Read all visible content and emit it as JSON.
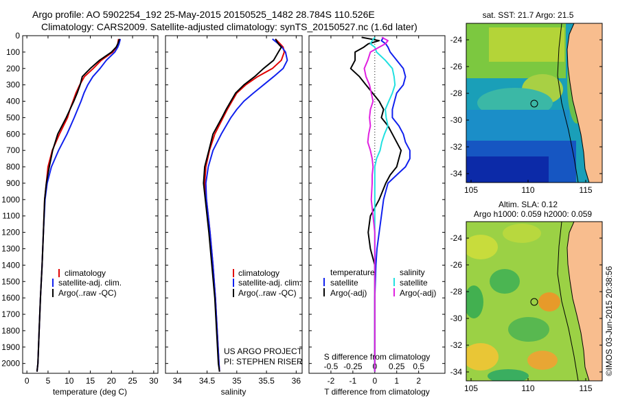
{
  "header": {
    "line1": "Argo profile: AO 5902254_192 25-May-2015 20150525_1482 28.784S 110.526E",
    "line2": "Climatology: CARS2009. Satellite-adjusted climatology: synTS_20150527.nc (1.6d later)"
  },
  "credits": {
    "project": "US ARGO PROJECT",
    "pi": "PI: STEPHEN RISER",
    "imos": "©IMOS 03-Jun-2015 20:38:56"
  },
  "colors": {
    "climatology": "#e00000",
    "satellite": "#1020ee",
    "argo": "#000000",
    "argo_salinity": "#e020e0",
    "satellite_salinity": "#20e0e0",
    "land": "#f8bd8e"
  },
  "depth_axis": {
    "ticks": [
      0,
      100,
      200,
      300,
      400,
      500,
      600,
      700,
      800,
      900,
      1000,
      1100,
      1200,
      1300,
      1400,
      1500,
      1600,
      1700,
      1800,
      1900,
      2000
    ],
    "ylim": [
      0,
      2060
    ]
  },
  "chart_data": [
    {
      "type": "line",
      "id": "temperature",
      "xlabel": "temperature (deg C)",
      "xlim": [
        -1,
        31
      ],
      "xticks": [
        0,
        5,
        10,
        15,
        20,
        25,
        30
      ],
      "ylim": [
        0,
        2060
      ],
      "depths": [
        20,
        50,
        70,
        100,
        150,
        200,
        250,
        300,
        350,
        400,
        450,
        500,
        600,
        700,
        800,
        900,
        1000,
        1200,
        1400,
        1600,
        1800,
        2000,
        2050
      ],
      "series": [
        {
          "name": "climatology",
          "color_key": "climatology",
          "values": [
            21.7,
            21.5,
            21.2,
            20.3,
            17.6,
            15.7,
            13.6,
            12.5,
            11.6,
            10.9,
            10.2,
            9.6,
            7.7,
            6.0,
            5.0,
            4.6,
            4.2,
            3.9,
            3.6,
            3.2,
            2.9,
            2.6,
            2.4
          ]
        },
        {
          "name": "satellite-adj. clim.",
          "color_key": "satellite",
          "values": [
            22.1,
            21.8,
            21.5,
            20.8,
            18.8,
            17.3,
            15.6,
            14.4,
            13.5,
            12.8,
            12.0,
            11.2,
            9.5,
            7.5,
            5.8,
            4.8,
            4.3,
            3.9,
            3.6,
            3.2,
            2.9,
            2.6,
            2.4
          ]
        },
        {
          "name": "Argo(..raw -QC)",
          "color_key": "argo",
          "values": [
            21.9,
            21.5,
            21.1,
            20.0,
            17.2,
            15.0,
            13.1,
            12.6,
            11.9,
            11.1,
            10.2,
            9.3,
            7.3,
            6.1,
            5.3,
            4.6,
            4.2,
            3.9,
            3.6,
            3.2,
            2.9,
            2.6,
            2.4
          ]
        }
      ],
      "legend": [
        "climatology",
        "satellite-adj. clim.",
        "Argo(..raw -QC)"
      ]
    },
    {
      "type": "line",
      "id": "salinity",
      "xlabel": "salinity",
      "xlim": [
        33.8,
        36.1
      ],
      "xticks": [
        34,
        34.5,
        35,
        35.5,
        36
      ],
      "ylim": [
        0,
        2060
      ],
      "depths": [
        20,
        50,
        70,
        100,
        150,
        200,
        250,
        300,
        350,
        400,
        450,
        500,
        600,
        700,
        800,
        900,
        1000,
        1200,
        1400,
        1600,
        1800,
        2000,
        2050
      ],
      "series": [
        {
          "name": "climatology",
          "color_key": "climatology",
          "values": [
            35.65,
            35.73,
            35.78,
            35.8,
            35.75,
            35.6,
            35.35,
            35.15,
            35.0,
            34.92,
            34.84,
            34.77,
            34.63,
            34.54,
            34.48,
            34.46,
            34.49,
            34.55,
            34.6,
            34.64,
            34.67,
            34.7,
            34.71
          ]
        },
        {
          "name": "satellite-adj. clim.",
          "color_key": "satellite",
          "values": [
            35.6,
            35.7,
            35.76,
            35.82,
            35.85,
            35.78,
            35.62,
            35.45,
            35.28,
            35.12,
            35.0,
            34.9,
            34.74,
            34.6,
            34.52,
            34.48,
            34.49,
            34.55,
            34.6,
            34.64,
            34.67,
            34.7,
            34.71
          ]
        },
        {
          "name": "Argo(..raw -QC)",
          "color_key": "argo",
          "values": [
            35.65,
            35.7,
            35.75,
            35.7,
            35.62,
            35.45,
            35.3,
            35.12,
            34.98,
            34.9,
            34.82,
            34.75,
            34.6,
            34.53,
            34.46,
            34.44,
            34.47,
            34.53,
            34.58,
            34.63,
            34.66,
            34.69,
            34.71
          ]
        }
      ],
      "legend": [
        "climatology",
        "satellite-adj. clim.",
        "Argo(..raw -QC)"
      ]
    },
    {
      "type": "line",
      "id": "differences",
      "xlabel": "T difference from climatology",
      "xlabel_top": "S difference from climatology",
      "xlim": [
        -3,
        3.2
      ],
      "xticks": [
        -2,
        -1,
        0,
        1,
        2
      ],
      "xticks_s": [
        -0.5,
        -0.25,
        0,
        0.25,
        0.5
      ],
      "xtick_labels_s": [
        "-0.5",
        "-0.25",
        "0",
        "0.25",
        "0.5"
      ],
      "ylim": [
        0,
        2060
      ],
      "depths": [
        10,
        30,
        50,
        70,
        100,
        150,
        200,
        250,
        300,
        350,
        400,
        450,
        500,
        550,
        600,
        650,
        700,
        750,
        800,
        850,
        900,
        1000,
        1100,
        1200,
        1300,
        1400,
        1600,
        1800,
        2000,
        2050
      ],
      "series": [
        {
          "name": "temperature satellite",
          "color_key": "satellite",
          "values": [
            0.4,
            0.3,
            0.5,
            0.6,
            0.7,
            1.0,
            1.3,
            1.4,
            1.3,
            1.0,
            0.9,
            0.8,
            0.8,
            1.1,
            1.3,
            1.4,
            1.6,
            1.6,
            1.4,
            1.0,
            0.6,
            0.4,
            0.3,
            0.2,
            0.1,
            0.05,
            0.0,
            0.0,
            0.0,
            0.0
          ]
        },
        {
          "name": "temperature Argo(-adj)",
          "color_key": "argo",
          "values": [
            -0.6,
            0.2,
            -0.3,
            -0.5,
            -0.9,
            -0.9,
            -1.1,
            -0.7,
            -0.4,
            -0.1,
            0.2,
            0.4,
            0.3,
            0.6,
            0.8,
            1.0,
            1.2,
            1.1,
            1.0,
            0.7,
            0.5,
            0.2,
            -0.2,
            -0.3,
            -0.2,
            0.0,
            0.0,
            0.0,
            0.0,
            0.0
          ]
        },
        {
          "name": "salinity satellite",
          "color_key": "satellite_salinity",
          "values": [
            0.0,
            -0.03,
            -0.05,
            0.0,
            0.02,
            0.12,
            0.2,
            0.22,
            0.23,
            0.2,
            0.16,
            0.12,
            0.13,
            0.15,
            0.11,
            0.08,
            0.06,
            0.02,
            0.0,
            0.0,
            0.0,
            0.0,
            0.0,
            0.0,
            0.0,
            0.0,
            0.0,
            0.0,
            0.0,
            0.0
          ]
        },
        {
          "name": "salinity Argo(-adj)",
          "color_key": "argo_salinity",
          "values": [
            0.08,
            0.15,
            0.12,
            0.05,
            -0.05,
            -0.08,
            -0.12,
            -0.1,
            -0.06,
            -0.04,
            -0.02,
            -0.05,
            -0.06,
            -0.05,
            -0.07,
            -0.08,
            -0.05,
            -0.03,
            -0.02,
            -0.03,
            -0.03,
            -0.04,
            -0.02,
            0.0,
            0.0,
            0.0,
            0.0,
            0.0,
            0.0,
            0.0
          ]
        }
      ],
      "legend_headers": [
        "temperature",
        "salinity"
      ],
      "legend": [
        "satellite",
        "Argo(-adj)",
        "satellite",
        "Argo(-adj)"
      ]
    }
  ],
  "maps": [
    {
      "id": "sst-map",
      "title": "sat. SST: 21.7  Argo: 21.5",
      "lon_ticks": [
        "105",
        "110",
        "115"
      ],
      "lat_ticks": [
        "-24",
        "-26",
        "-28",
        "-30",
        "-32",
        "-34"
      ],
      "float_position": {
        "lon": 110.526,
        "lat": -28.784
      }
    },
    {
      "id": "sla-map",
      "title": "Altim. SLA: 0.12",
      "subtitle": "Argo h1000: 0.059  h2000: 0.059",
      "lon_ticks": [
        "105",
        "110",
        "115"
      ],
      "lat_ticks": [
        "-24",
        "-26",
        "-28",
        "-30",
        "-32",
        "-34"
      ],
      "float_position": {
        "lon": 110.526,
        "lat": -28.784
      }
    }
  ]
}
